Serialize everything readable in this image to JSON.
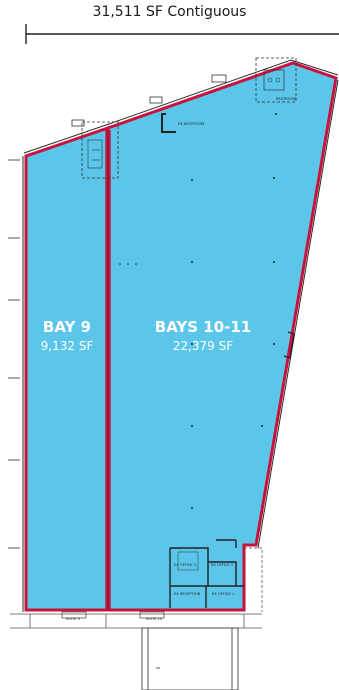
{
  "header": {
    "contiguous": "31,511 SF Contiguous"
  },
  "bays": [
    {
      "name": "BAY 9",
      "area": "9,132 SF"
    },
    {
      "name": "BAYS 10-11",
      "area": "22,379 SF"
    }
  ],
  "room_labels": {
    "restroom_top": "RESTROOM",
    "ex_restroom": "EX RESTROOM",
    "ex_office_3": "EX OFFICE 3",
    "ex_office_2": "EX OFFICE 2",
    "ex_reception": "EX RECEPTION",
    "ex_office_1": "EX OFFICE 1",
    "suite_a": "SUITE 9",
    "suite_b": "SUITE 10"
  },
  "colors": {
    "fill": "#5bc6ea",
    "border": "#c8123c",
    "wall": "#2b2b2b"
  }
}
